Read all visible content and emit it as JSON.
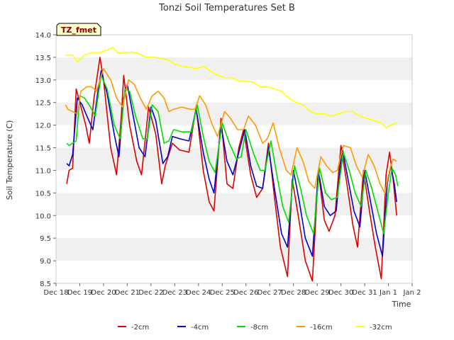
{
  "chart_data": {
    "type": "line",
    "title": "Tonzi Soil Temperatures Set B",
    "xlabel": "Time",
    "ylabel": "Soil Temperature (C)",
    "badge": "TZ_fmet",
    "ylim": [
      8.5,
      14.0
    ],
    "xlim": [
      18.0,
      33.0
    ],
    "y_ticks": [
      "8.5",
      "9.0",
      "9.5",
      "10.0",
      "10.5",
      "11.0",
      "11.5",
      "12.0",
      "12.5",
      "13.0",
      "13.5",
      "14.0"
    ],
    "x_ticks": [
      {
        "x": 18,
        "label": "Dec 18"
      },
      {
        "x": 19,
        "label": "Dec 19"
      },
      {
        "x": 20,
        "label": "Dec 20"
      },
      {
        "x": 21,
        "label": "Dec 21"
      },
      {
        "x": 22,
        "label": "Dec 22"
      },
      {
        "x": 23,
        "label": "Dec 23"
      },
      {
        "x": 24,
        "label": "Dec 24"
      },
      {
        "x": 25,
        "label": "Dec 25"
      },
      {
        "x": 26,
        "label": "Dec 26"
      },
      {
        "x": 27,
        "label": "Dec 27"
      },
      {
        "x": 28,
        "label": "Dec 28"
      },
      {
        "x": 29,
        "label": "Dec 29"
      },
      {
        "x": 30,
        "label": "Dec 30"
      },
      {
        "x": 31,
        "label": "Dec 31"
      },
      {
        "x": 32,
        "label": "Jan 1"
      },
      {
        "x": 33,
        "label": "Jan 2"
      }
    ],
    "grid": "horizontal bands",
    "legend_position": "bottom",
    "series": [
      {
        "name": "-2cm",
        "color": "#dd0000",
        "points": [
          [
            18.45,
            10.7
          ],
          [
            18.55,
            11.0
          ],
          [
            18.7,
            11.05
          ],
          [
            18.85,
            12.8
          ],
          [
            19.0,
            12.5
          ],
          [
            19.25,
            12.0
          ],
          [
            19.4,
            11.6
          ],
          [
            19.6,
            12.6
          ],
          [
            19.85,
            13.5
          ],
          [
            20.0,
            13.0
          ],
          [
            20.3,
            11.5
          ],
          [
            20.55,
            10.9
          ],
          [
            20.75,
            12.2
          ],
          [
            20.85,
            13.1
          ],
          [
            21.1,
            12.0
          ],
          [
            21.4,
            11.2
          ],
          [
            21.6,
            10.9
          ],
          [
            21.9,
            12.4
          ],
          [
            22.2,
            11.8
          ],
          [
            22.45,
            10.7
          ],
          [
            22.6,
            11.1
          ],
          [
            22.9,
            11.6
          ],
          [
            23.2,
            11.45
          ],
          [
            23.6,
            11.4
          ],
          [
            23.9,
            12.4
          ],
          [
            24.2,
            11.0
          ],
          [
            24.45,
            10.3
          ],
          [
            24.65,
            10.1
          ],
          [
            24.95,
            12.15
          ],
          [
            25.2,
            10.7
          ],
          [
            25.45,
            10.6
          ],
          [
            25.7,
            11.5
          ],
          [
            25.9,
            11.9
          ],
          [
            26.2,
            10.9
          ],
          [
            26.45,
            10.4
          ],
          [
            26.7,
            10.6
          ],
          [
            26.95,
            11.6
          ],
          [
            27.2,
            10.4
          ],
          [
            27.45,
            9.3
          ],
          [
            27.75,
            8.65
          ],
          [
            27.95,
            10.8
          ],
          [
            28.2,
            10.0
          ],
          [
            28.5,
            9.0
          ],
          [
            28.8,
            8.55
          ],
          [
            29.05,
            11.0
          ],
          [
            29.3,
            9.9
          ],
          [
            29.5,
            9.65
          ],
          [
            29.75,
            10.0
          ],
          [
            30.0,
            11.55
          ],
          [
            30.25,
            10.7
          ],
          [
            30.5,
            9.8
          ],
          [
            30.7,
            9.3
          ],
          [
            30.95,
            11.0
          ],
          [
            31.2,
            10.1
          ],
          [
            31.45,
            9.3
          ],
          [
            31.7,
            8.6
          ],
          [
            31.9,
            10.9
          ],
          [
            32.05,
            11.4
          ],
          [
            32.2,
            10.8
          ],
          [
            32.35,
            10.0
          ]
        ]
      },
      {
        "name": "-4cm",
        "color": "#0000cc",
        "points": [
          [
            18.45,
            11.15
          ],
          [
            18.55,
            11.1
          ],
          [
            18.7,
            11.35
          ],
          [
            18.9,
            12.6
          ],
          [
            19.1,
            12.45
          ],
          [
            19.3,
            12.2
          ],
          [
            19.55,
            11.9
          ],
          [
            19.75,
            12.7
          ],
          [
            19.9,
            13.2
          ],
          [
            20.15,
            12.7
          ],
          [
            20.45,
            11.8
          ],
          [
            20.65,
            11.3
          ],
          [
            20.85,
            12.6
          ],
          [
            21.0,
            12.9
          ],
          [
            21.25,
            12.2
          ],
          [
            21.5,
            11.5
          ],
          [
            21.75,
            11.3
          ],
          [
            22.0,
            12.4
          ],
          [
            22.2,
            12.1
          ],
          [
            22.5,
            11.15
          ],
          [
            22.7,
            11.3
          ],
          [
            22.9,
            11.75
          ],
          [
            23.2,
            11.7
          ],
          [
            23.6,
            11.65
          ],
          [
            23.9,
            12.35
          ],
          [
            24.2,
            11.4
          ],
          [
            24.45,
            10.8
          ],
          [
            24.65,
            10.5
          ],
          [
            24.95,
            12.0
          ],
          [
            25.2,
            11.2
          ],
          [
            25.45,
            10.9
          ],
          [
            25.7,
            11.4
          ],
          [
            25.95,
            11.9
          ],
          [
            26.2,
            11.1
          ],
          [
            26.45,
            10.65
          ],
          [
            26.7,
            10.6
          ],
          [
            26.95,
            11.5
          ],
          [
            27.2,
            10.6
          ],
          [
            27.5,
            9.6
          ],
          [
            27.75,
            9.3
          ],
          [
            28.0,
            11.0
          ],
          [
            28.25,
            10.3
          ],
          [
            28.5,
            9.5
          ],
          [
            28.8,
            9.1
          ],
          [
            29.05,
            11.0
          ],
          [
            29.3,
            10.2
          ],
          [
            29.55,
            10.0
          ],
          [
            29.8,
            10.1
          ],
          [
            30.05,
            11.5
          ],
          [
            30.3,
            10.8
          ],
          [
            30.55,
            10.1
          ],
          [
            30.8,
            9.75
          ],
          [
            31.0,
            11.0
          ],
          [
            31.25,
            10.3
          ],
          [
            31.5,
            9.6
          ],
          [
            31.75,
            9.1
          ],
          [
            31.95,
            10.7
          ],
          [
            32.1,
            11.1
          ],
          [
            32.25,
            10.7
          ],
          [
            32.35,
            10.3
          ]
        ]
      },
      {
        "name": "-8cm",
        "color": "#00dd00",
        "points": [
          [
            18.45,
            11.6
          ],
          [
            18.55,
            11.55
          ],
          [
            18.7,
            11.6
          ],
          [
            18.85,
            11.65
          ],
          [
            19.0,
            12.65
          ],
          [
            19.2,
            12.6
          ],
          [
            19.45,
            12.4
          ],
          [
            19.65,
            12.2
          ],
          [
            19.9,
            13.1
          ],
          [
            20.15,
            12.8
          ],
          [
            20.45,
            12.0
          ],
          [
            20.7,
            11.7
          ],
          [
            20.9,
            12.8
          ],
          [
            21.1,
            12.75
          ],
          [
            21.35,
            12.2
          ],
          [
            21.65,
            11.7
          ],
          [
            21.85,
            11.7
          ],
          [
            22.05,
            12.45
          ],
          [
            22.3,
            12.3
          ],
          [
            22.55,
            11.6
          ],
          [
            22.75,
            11.65
          ],
          [
            22.95,
            11.9
          ],
          [
            23.3,
            11.85
          ],
          [
            23.7,
            11.85
          ],
          [
            23.95,
            12.45
          ],
          [
            24.2,
            11.75
          ],
          [
            24.45,
            11.2
          ],
          [
            24.7,
            10.95
          ],
          [
            25.0,
            12.05
          ],
          [
            25.3,
            11.6
          ],
          [
            25.6,
            11.25
          ],
          [
            25.8,
            11.3
          ],
          [
            26.0,
            11.9
          ],
          [
            26.3,
            11.4
          ],
          [
            26.6,
            11.0
          ],
          [
            26.8,
            11.0
          ],
          [
            27.05,
            11.65
          ],
          [
            27.3,
            10.9
          ],
          [
            27.55,
            10.2
          ],
          [
            27.8,
            9.85
          ],
          [
            28.05,
            11.1
          ],
          [
            28.3,
            10.6
          ],
          [
            28.55,
            10.0
          ],
          [
            28.85,
            9.6
          ],
          [
            29.1,
            11.05
          ],
          [
            29.35,
            10.5
          ],
          [
            29.6,
            10.35
          ],
          [
            29.85,
            10.4
          ],
          [
            30.1,
            11.4
          ],
          [
            30.35,
            11.0
          ],
          [
            30.6,
            10.5
          ],
          [
            30.85,
            10.2
          ],
          [
            31.05,
            11.0
          ],
          [
            31.3,
            10.6
          ],
          [
            31.55,
            10.1
          ],
          [
            31.8,
            9.6
          ],
          [
            32.0,
            10.5
          ],
          [
            32.15,
            11.05
          ],
          [
            32.3,
            10.9
          ],
          [
            32.4,
            10.65
          ]
        ]
      },
      {
        "name": "-16cm",
        "color": "#ff9900",
        "points": [
          [
            18.4,
            12.45
          ],
          [
            18.5,
            12.35
          ],
          [
            18.7,
            12.3
          ],
          [
            18.9,
            12.25
          ],
          [
            19.05,
            12.75
          ],
          [
            19.3,
            12.85
          ],
          [
            19.5,
            12.85
          ],
          [
            19.7,
            12.75
          ],
          [
            20.0,
            13.25
          ],
          [
            20.3,
            13.0
          ],
          [
            20.55,
            12.6
          ],
          [
            20.8,
            12.4
          ],
          [
            21.05,
            13.0
          ],
          [
            21.3,
            12.9
          ],
          [
            21.55,
            12.6
          ],
          [
            21.8,
            12.35
          ],
          [
            22.05,
            12.65
          ],
          [
            22.3,
            12.75
          ],
          [
            22.55,
            12.6
          ],
          [
            22.75,
            12.3
          ],
          [
            22.95,
            12.35
          ],
          [
            23.3,
            12.4
          ],
          [
            23.65,
            12.35
          ],
          [
            23.85,
            12.35
          ],
          [
            24.05,
            12.65
          ],
          [
            24.3,
            12.45
          ],
          [
            24.55,
            12.05
          ],
          [
            24.8,
            11.75
          ],
          [
            25.1,
            12.3
          ],
          [
            25.35,
            12.15
          ],
          [
            25.65,
            11.9
          ],
          [
            25.9,
            11.9
          ],
          [
            26.1,
            12.2
          ],
          [
            26.4,
            12.0
          ],
          [
            26.7,
            11.6
          ],
          [
            26.9,
            11.7
          ],
          [
            27.15,
            12.05
          ],
          [
            27.4,
            11.5
          ],
          [
            27.7,
            11.0
          ],
          [
            27.9,
            10.9
          ],
          [
            28.15,
            11.5
          ],
          [
            28.4,
            11.2
          ],
          [
            28.65,
            10.75
          ],
          [
            28.9,
            10.6
          ],
          [
            29.15,
            11.3
          ],
          [
            29.4,
            11.1
          ],
          [
            29.65,
            10.95
          ],
          [
            29.85,
            11.0
          ],
          [
            30.1,
            11.55
          ],
          [
            30.4,
            11.5
          ],
          [
            30.65,
            11.1
          ],
          [
            30.9,
            10.85
          ],
          [
            31.15,
            11.35
          ],
          [
            31.4,
            11.1
          ],
          [
            31.65,
            10.7
          ],
          [
            31.85,
            10.5
          ],
          [
            32.05,
            11.0
          ],
          [
            32.2,
            11.25
          ],
          [
            32.35,
            11.2
          ]
        ]
      },
      {
        "name": "-32cm",
        "color": "#ffff00",
        "points": [
          [
            18.4,
            13.55
          ],
          [
            18.7,
            13.55
          ],
          [
            18.9,
            13.4
          ],
          [
            19.2,
            13.55
          ],
          [
            19.5,
            13.6
          ],
          [
            19.8,
            13.6
          ],
          [
            20.1,
            13.65
          ],
          [
            20.4,
            13.72
          ],
          [
            20.6,
            13.6
          ],
          [
            20.9,
            13.6
          ],
          [
            21.2,
            13.62
          ],
          [
            21.5,
            13.58
          ],
          [
            21.8,
            13.5
          ],
          [
            22.1,
            13.5
          ],
          [
            22.4,
            13.48
          ],
          [
            22.7,
            13.45
          ],
          [
            23.0,
            13.35
          ],
          [
            23.3,
            13.3
          ],
          [
            23.6,
            13.28
          ],
          [
            23.9,
            13.25
          ],
          [
            24.2,
            13.3
          ],
          [
            24.5,
            13.2
          ],
          [
            24.8,
            13.1
          ],
          [
            25.1,
            13.05
          ],
          [
            25.4,
            13.05
          ],
          [
            25.7,
            12.98
          ],
          [
            26.0,
            12.97
          ],
          [
            26.3,
            12.95
          ],
          [
            26.6,
            12.85
          ],
          [
            26.9,
            12.85
          ],
          [
            27.2,
            12.8
          ],
          [
            27.5,
            12.75
          ],
          [
            27.8,
            12.6
          ],
          [
            28.1,
            12.5
          ],
          [
            28.4,
            12.45
          ],
          [
            28.7,
            12.3
          ],
          [
            29.0,
            12.25
          ],
          [
            29.3,
            12.25
          ],
          [
            29.6,
            12.2
          ],
          [
            29.9,
            12.25
          ],
          [
            30.2,
            12.3
          ],
          [
            30.5,
            12.3
          ],
          [
            30.8,
            12.2
          ],
          [
            31.1,
            12.15
          ],
          [
            31.4,
            12.1
          ],
          [
            31.7,
            12.05
          ],
          [
            31.9,
            11.95
          ],
          [
            32.1,
            12.0
          ],
          [
            32.35,
            12.05
          ]
        ]
      }
    ]
  }
}
